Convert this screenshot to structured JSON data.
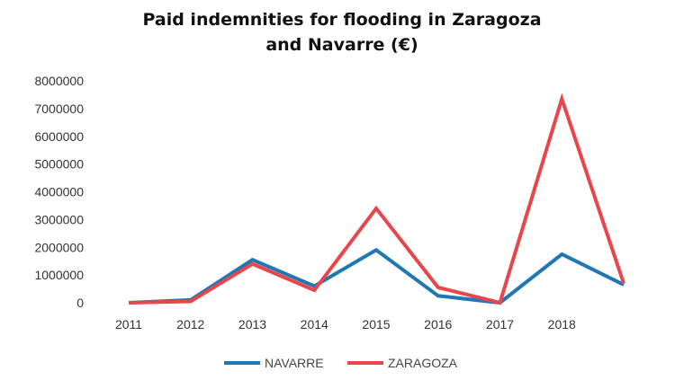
{
  "chart_data": {
    "type": "line",
    "title_lines": [
      "Paid indemnities for flooding in Zaragoza",
      "and Navarre (€)"
    ],
    "xlabel": "",
    "ylabel": "",
    "ylim": [
      0,
      8000000
    ],
    "y_ticks": [
      "0",
      "1000000",
      "2000000",
      "3000000",
      "4000000",
      "5000000",
      "6000000",
      "7000000",
      "8000000"
    ],
    "categories": [
      "2011",
      "2012",
      "2013",
      "2014",
      "2015",
      "2016",
      "2017",
      "2018",
      ""
    ],
    "series": [
      {
        "name": "NAVARRE",
        "color": "#1f77b4",
        "values": [
          0,
          100000,
          1550000,
          600000,
          1900000,
          250000,
          0,
          1750000,
          650000
        ]
      },
      {
        "name": "ZARAGOZA",
        "color": "#e8464b",
        "values": [
          0,
          50000,
          1400000,
          450000,
          3400000,
          550000,
          0,
          7350000,
          700000
        ]
      }
    ],
    "grid": false,
    "legend_position": "bottom"
  }
}
